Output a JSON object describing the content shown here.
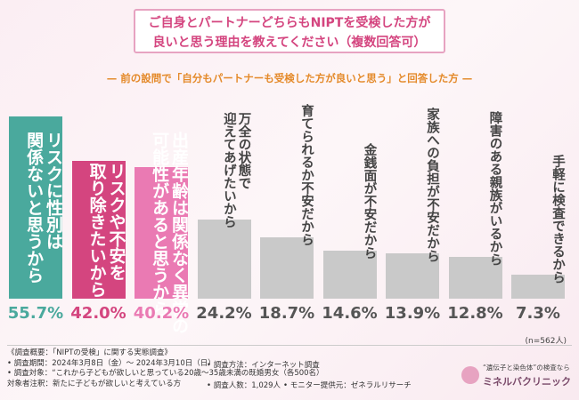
{
  "chart_data": {
    "type": "bar",
    "title": [
      "ご自身とパートナーどちらもNIPTを受検した方が",
      "良いと思う理由を教えてください（複数回答可）"
    ],
    "subtitle": "前の設問で「自分もパートナーも受検した方が良いと思う」と回答した方",
    "categories": [
      "リスクに性別は\n関係ないと思うから",
      "リスクや不安を\n取り除きたいから",
      "出産年齢は関係なく異常の\n可能性があると思うから",
      "万全の状態で\n迎えてあげたいから",
      "育てられるか不安だから",
      "金銭面が不安だから",
      "家族への負担が不安だから",
      "障害のある親族がいるから",
      "手軽に検査できるから"
    ],
    "values": [
      55.7,
      42.0,
      40.2,
      24.2,
      18.7,
      14.6,
      13.9,
      12.8,
      7.3
    ],
    "value_labels": [
      "55.7%",
      "42.0%",
      "40.2%",
      "24.2%",
      "18.7%",
      "14.6%",
      "13.9%",
      "12.8%",
      "7.3%"
    ],
    "colors": [
      "#4aa99d",
      "#d4457f",
      "#ea7ab3",
      "#c9c9c9",
      "#c9c9c9",
      "#c9c9c9",
      "#c9c9c9",
      "#c9c9c9",
      "#c9c9c9"
    ],
    "value_label_colors": [
      "#4aa99d",
      "#d4457f",
      "#ea7ab3",
      "#555555",
      "#555555",
      "#555555",
      "#555555",
      "#555555",
      "#555555"
    ],
    "label_inside": [
      true,
      true,
      true,
      false,
      false,
      false,
      false,
      false,
      false
    ],
    "note": "(n=562人)"
  },
  "footer": {
    "lines": [
      "《調査概要：「NIPTの受検」に関する実態調査》",
      "• 調査期間：2024年3月8日（金）〜 2024年3月10日（日）",
      "• 調査対象：“これから子どもが欲しいと思っている20歳〜35歳未満の既婚男女（各500名）",
      "対象者注釈：新たに子どもが欲しいと考えている方"
    ],
    "method": "• 調査方法：インターネット調査",
    "count": "• 調査人数：1,029人",
    "provider": "• モニター提供元：ゼネラルリサーチ"
  },
  "logo": {
    "tagline": "“遺伝子と染色体”の検査なら",
    "name": "ミネルバクリニック"
  }
}
